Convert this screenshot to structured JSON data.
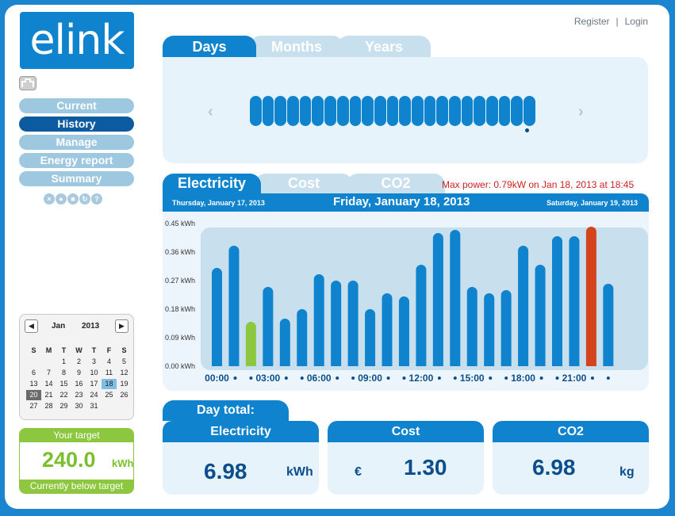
{
  "brand": {
    "logo_text": "elink"
  },
  "header_links": {
    "register": "Register",
    "separator": "|",
    "login": "Login"
  },
  "nav": {
    "items": [
      {
        "label": "Current",
        "active": false
      },
      {
        "label": "History",
        "active": true
      },
      {
        "label": "Manage",
        "active": false
      },
      {
        "label": "Energy report",
        "active": false
      },
      {
        "label": "Summary",
        "active": false
      }
    ],
    "tool_icons": [
      "close-icon",
      "record-icon",
      "stop-icon",
      "refresh-icon",
      "help-icon"
    ]
  },
  "period_tabs": [
    {
      "label": "Days",
      "active": true
    },
    {
      "label": "Months",
      "active": false
    },
    {
      "label": "Years",
      "active": false
    }
  ],
  "day_selector": {
    "count": 23,
    "selected_index": 21
  },
  "metric_tabs": [
    {
      "label": "Electricity",
      "active": true
    },
    {
      "label": "Cost",
      "active": false
    },
    {
      "label": "CO2",
      "active": false
    }
  ],
  "max_power": "Max power: 0.79kW on  Jan 18, 2013 at  18:45",
  "chart_header": {
    "prev_day": "Thursday, January 17, 2013",
    "current_day": "Friday, January 18, 2013",
    "next_day": "Saturday, January 19, 2013"
  },
  "chart_data": {
    "type": "bar",
    "title": "",
    "xlabel": "",
    "ylabel": "",
    "ylim": [
      0,
      0.45
    ],
    "y_ticks": [
      "0.00 kWh",
      "0.09 kWh",
      "0.18 kWh",
      "0.27 kWh",
      "0.36 kWh",
      "0.45 kWh"
    ],
    "y_tick_values": [
      0,
      0.09,
      0.18,
      0.27,
      0.36,
      0.45
    ],
    "x_tick_labels": [
      "00:00",
      "03:00",
      "06:00",
      "09:00",
      "12:00",
      "15:00",
      "18:00",
      "21:00"
    ],
    "x_tick_hours": [
      0,
      3,
      6,
      9,
      12,
      15,
      18,
      21
    ],
    "categories": [
      "00",
      "01",
      "02",
      "03",
      "04",
      "05",
      "06",
      "07",
      "08",
      "09",
      "10",
      "11",
      "12",
      "13",
      "14",
      "15",
      "16",
      "17",
      "18",
      "19",
      "20",
      "21",
      "22",
      "23"
    ],
    "values": [
      0.31,
      0.38,
      0.14,
      0.25,
      0.15,
      0.18,
      0.29,
      0.27,
      0.27,
      0.18,
      0.23,
      0.22,
      0.32,
      0.42,
      0.43,
      0.25,
      0.23,
      0.24,
      0.38,
      0.32,
      0.41,
      0.41,
      0.44,
      0.26
    ],
    "highlight": {
      "min_index": 2,
      "max_index": 22
    },
    "colors": {
      "bar": "#0f83cd",
      "min": "#8dc63f",
      "max": "#d3441c",
      "plot_bg": "#c8dfee"
    },
    "grid": false
  },
  "calendar": {
    "prev": "◀",
    "next": "▶",
    "month": "Jan",
    "year": "2013",
    "dow": [
      "S",
      "M",
      "T",
      "W",
      "T",
      "F",
      "S"
    ],
    "leading_blanks": 2,
    "days": 31,
    "selected_day": 18,
    "today_day": 20
  },
  "target": {
    "title": "Your target",
    "value": "240.0",
    "unit": "kWh",
    "status": "Currently below target"
  },
  "totals": {
    "title": "Day total:",
    "cards": [
      {
        "label": "Electricity",
        "prefix": "",
        "value": "6.98",
        "unit": "kWh"
      },
      {
        "label": "Cost",
        "prefix": "€",
        "value": "1.30",
        "unit": ""
      },
      {
        "label": "CO2",
        "prefix": "",
        "value": "6.98",
        "unit": "kg"
      }
    ]
  }
}
